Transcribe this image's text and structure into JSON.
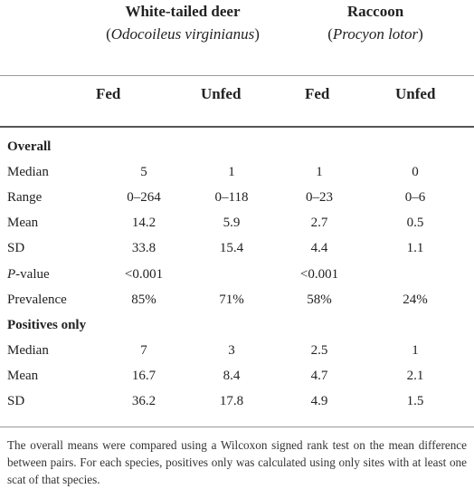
{
  "header": {
    "species": [
      {
        "common": "White-tailed deer",
        "sci_open": "(",
        "sci_name": "Odocoileus virginianus",
        "sci_close": ")"
      },
      {
        "common": "Raccoon",
        "sci_open": "(",
        "sci_name": "Procyon lotor",
        "sci_close": ")"
      }
    ],
    "columns": [
      "Fed",
      "Unfed",
      "Fed",
      "Unfed"
    ]
  },
  "rows": [
    {
      "type": "section",
      "label": "Overall"
    },
    {
      "type": "data",
      "label": "Median",
      "values": [
        "5",
        "1",
        "1",
        "0"
      ]
    },
    {
      "type": "data",
      "label": "Range",
      "values": [
        "0–264",
        "0–118",
        "0–23",
        "0–6"
      ]
    },
    {
      "type": "data",
      "label": "Mean",
      "values": [
        "14.2",
        "5.9",
        "2.7",
        "0.5"
      ]
    },
    {
      "type": "data",
      "label": "SD",
      "values": [
        "33.8",
        "15.4",
        "4.4",
        "1.1"
      ]
    },
    {
      "type": "data",
      "label_italic": "P",
      "label": "-value",
      "values": [
        "<0.001",
        "",
        "<0.001",
        ""
      ]
    },
    {
      "type": "data",
      "label": "Prevalence",
      "values": [
        "85%",
        "71%",
        "58%",
        "24%"
      ]
    },
    {
      "type": "section",
      "label": "Positives only"
    },
    {
      "type": "data",
      "label": "Median",
      "values": [
        "7",
        "3",
        "2.5",
        "1"
      ]
    },
    {
      "type": "data",
      "label": "Mean",
      "values": [
        "16.7",
        "8.4",
        "4.7",
        "2.1"
      ]
    },
    {
      "type": "data",
      "label": "SD",
      "values": [
        "36.2",
        "17.8",
        "4.9",
        "1.5"
      ]
    }
  ],
  "footnote": "The overall means were compared using a Wilcoxon signed rank test on the mean difference between pairs. For each species, positives only was calculated using only sites with at least one scat of that species."
}
